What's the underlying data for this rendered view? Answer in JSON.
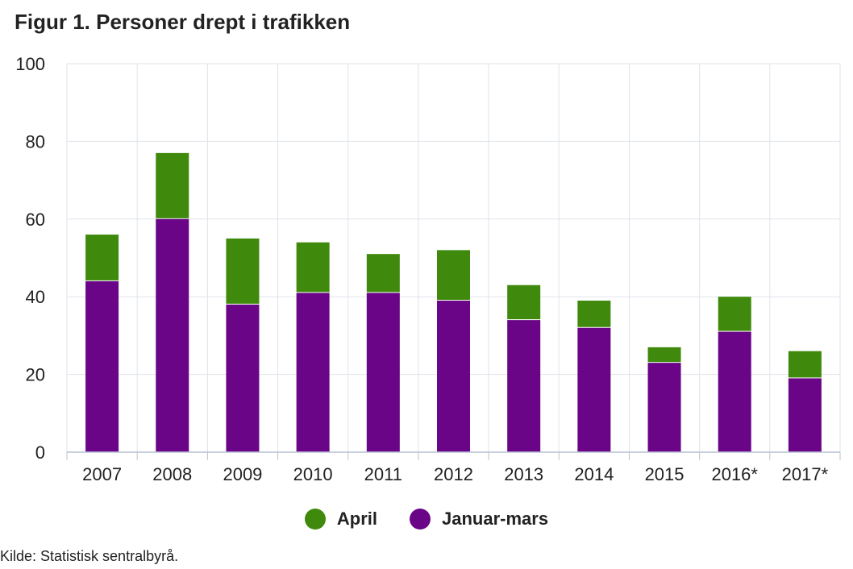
{
  "title": "Figur 1. Personer drept i trafikken",
  "source": "Kilde: Statistisk sentralbyrå.",
  "colors": {
    "april": "#3f8a0c",
    "januar_mars": "#6a0587",
    "grid": "#dfe3ea",
    "axis": "#b8c2d4"
  },
  "chart_data": {
    "type": "bar",
    "stacked": true,
    "title": "Figur 1. Personer drept i trafikken",
    "xlabel": "",
    "ylabel": "",
    "ylim": [
      0,
      100
    ],
    "yticks": [
      0,
      20,
      40,
      60,
      80,
      100
    ],
    "grid": true,
    "legend_position": "bottom",
    "categories": [
      "2007",
      "2008",
      "2009",
      "2010",
      "2011",
      "2012",
      "2013",
      "2014",
      "2015",
      "2016*",
      "2017*"
    ],
    "series": [
      {
        "name": "Januar-mars",
        "values": [
          44,
          60,
          38,
          41,
          41,
          39,
          34,
          32,
          23,
          31,
          19
        ]
      },
      {
        "name": "April",
        "values": [
          12,
          17,
          17,
          13,
          10,
          13,
          9,
          7,
          4,
          9,
          7
        ]
      }
    ]
  },
  "legend": [
    {
      "label": "April",
      "color_key": "april"
    },
    {
      "label": "Januar-mars",
      "color_key": "januar_mars"
    }
  ]
}
